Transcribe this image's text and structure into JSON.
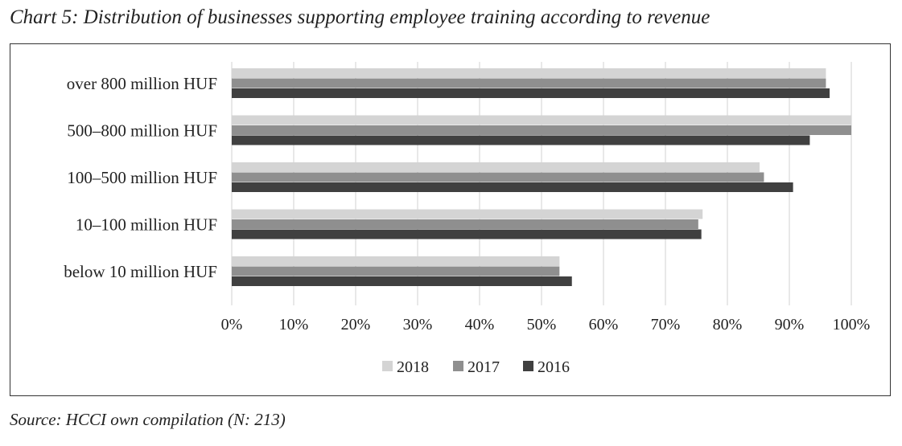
{
  "title": "Chart 5: Distribution of businesses supporting employee training according to revenue",
  "source": "Source: HCCI own compilation (N: 213)",
  "chart_data": {
    "type": "bar",
    "orientation": "horizontal",
    "categories": [
      "over 800 million HUF",
      "500–800 million HUF",
      "100–500 million HUF",
      "10–100 million HUF",
      "below 10 million HUF"
    ],
    "series": [
      {
        "name": "2018",
        "color": "#d4d4d4",
        "values": [
          95.9,
          100,
          85.2,
          76.0,
          52.9
        ]
      },
      {
        "name": "2017",
        "color": "#8f8f8f",
        "values": [
          95.9,
          100,
          85.9,
          75.3,
          52.9
        ]
      },
      {
        "name": "2016",
        "color": "#404040",
        "values": [
          96.5,
          93.3,
          90.6,
          75.8,
          54.9
        ]
      }
    ],
    "xlim": [
      0,
      100
    ],
    "xticks": [
      "0%",
      "10%",
      "20%",
      "30%",
      "40%",
      "50%",
      "60%",
      "70%",
      "80%",
      "90%",
      "100%"
    ],
    "grid": "vertical",
    "legend_position": "bottom"
  }
}
